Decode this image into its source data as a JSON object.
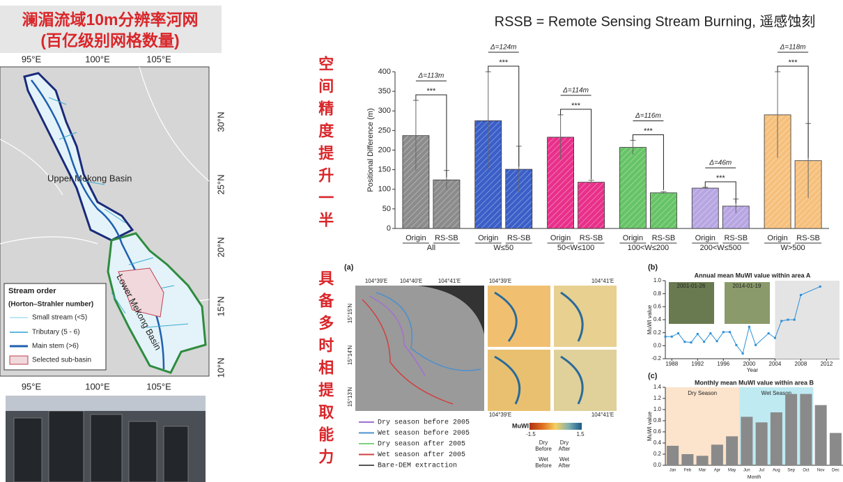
{
  "slide": {
    "title_lines": [
      "澜湄流域10m分辨率河网",
      "(百亿级别网格数量)"
    ],
    "header": "RSSB = Remote Sensing Stream Burning, 遥感蚀刻",
    "side_labels": [
      "空间精度提升一半",
      "具备多时相提取能力"
    ],
    "map": {
      "lon_labels": [
        "95°E",
        "100°E",
        "105°E"
      ],
      "lat_labels": [
        "30°N",
        "25°N",
        "20°N",
        "15°N",
        "10°N"
      ],
      "region_labels": [
        "Upper Mekong Basin",
        "Lower Mekong Basin"
      ],
      "legend_title": "Stream order",
      "legend_subtitle": "(Horton–Strahler number)",
      "legend_items": [
        "Small stream (<5)",
        "Tributary (5 - 6)",
        "Main stem (>6)",
        "Selected sub-basin"
      ]
    },
    "panel_a": {
      "label": "(a)",
      "top_coords": [
        "104°39'E",
        "104°40'E",
        "104°41'E"
      ],
      "thumb_coords": [
        "104°39'E",
        "104°41'E",
        "104°39'E",
        "104°41'E"
      ],
      "left_coords": [
        "15°15'N",
        "15°14'N",
        "15°13'N"
      ],
      "legend": [
        "Dry season before 2005",
        "Wet season before 2005",
        "Dry season after 2005",
        "Wet season after 2005",
        "Bare-DEM extraction"
      ],
      "colorbar_title": "MuWI",
      "colorbar_ticks": [
        "-1.5",
        "1.5"
      ],
      "colorbar_notes": [
        "Dry Before",
        "Dry After",
        "Wet Before",
        "Wet After"
      ]
    },
    "panel_labels": [
      "(b)",
      "(c)"
    ]
  },
  "chart_data": [
    {
      "type": "bar",
      "ylabel": "Positional Difference (m)",
      "categories": [
        "All",
        "W≤50",
        "50<W≤100",
        "100<W≤200",
        "200<W≤500",
        "W>500"
      ],
      "colors": [
        "#8c8c8c",
        "#3b5fc8",
        "#e8308a",
        "#66c466",
        "#b7a6e2",
        "#f6c07c"
      ],
      "series": [
        {
          "name": "Origin",
          "values": [
            237,
            275,
            233,
            207,
            103,
            290
          ],
          "errors": [
            90,
            125,
            57,
            18,
            2,
            110
          ]
        },
        {
          "name": "RS-SB",
          "values": [
            124,
            151,
            118,
            91,
            57,
            173
          ],
          "errors": [
            24,
            59,
            5,
            3,
            18,
            95
          ]
        }
      ],
      "annotations": [
        {
          "delta": "Δ=113m",
          "sig": "***"
        },
        {
          "delta": "Δ=124m",
          "sig": "***"
        },
        {
          "delta": "Δ=114m",
          "sig": "***"
        },
        {
          "delta": "Δ=116m",
          "sig": "***"
        },
        {
          "delta": "Δ=46m",
          "sig": "***"
        },
        {
          "delta": "Δ=118m",
          "sig": "***"
        }
      ],
      "ylim": [
        0,
        400
      ],
      "yticks": [
        0,
        50,
        100,
        150,
        200,
        250,
        300,
        350,
        400
      ]
    },
    {
      "type": "line",
      "title": "Annual mean MuWI value within area A",
      "xlabel": "Year",
      "ylabel": "MuWI value",
      "x": [
        1987,
        1988,
        1989,
        1990,
        1991,
        1992,
        1993,
        1994,
        1995,
        1996,
        1997,
        1998,
        1999,
        2000,
        2001,
        2003,
        2004,
        2005,
        2006,
        2007,
        2008,
        2011
      ],
      "values": [
        0.14,
        0.14,
        0.19,
        0.06,
        0.05,
        0.18,
        0.06,
        0.19,
        0.07,
        0.21,
        0.21,
        0.01,
        -0.12,
        0.29,
        0.01,
        0.19,
        0.12,
        0.38,
        0.4,
        0.4,
        0.78,
        0.91
      ],
      "color": "#2b8fd6",
      "image_dates": [
        "2001-01-26",
        "2014-01-19"
      ],
      "xlim": [
        1987,
        2014
      ],
      "xticks": [
        1988,
        1992,
        1996,
        2000,
        2004,
        2008,
        2012
      ],
      "ylim": [
        -0.2,
        1.0
      ],
      "yticks": [
        -0.2,
        {
          "value": 0,
          "label": "0.0"
        },
        0.2,
        0.4,
        0.6,
        0.8,
        {
          "value": 1,
          "label": "1.0"
        }
      ]
    },
    {
      "type": "bar",
      "title": "Monthly mean MuWI value within area B",
      "xlabel": "Month",
      "ylabel": "MuWI value",
      "categories": [
        "Jan",
        "Feb",
        "Mar",
        "Apr",
        "May",
        "Jun",
        "Jul",
        "Aug",
        "Sep",
        "Oct",
        "Nov",
        "Dec"
      ],
      "values": [
        0.35,
        0.2,
        0.17,
        0.37,
        0.52,
        0.87,
        0.77,
        0.95,
        1.28,
        1.28,
        1.08,
        0.58
      ],
      "color": "#8a8a8a",
      "seasons": [
        "Dry Season",
        "Wet Season"
      ],
      "ylim": [
        0,
        1.4
      ],
      "yticks": [
        {
          "value": 0,
          "label": "0.0"
        },
        0.2,
        0.4,
        0.6,
        0.8,
        {
          "value": 1,
          "label": "1.0"
        },
        1.2,
        1.4
      ]
    }
  ]
}
